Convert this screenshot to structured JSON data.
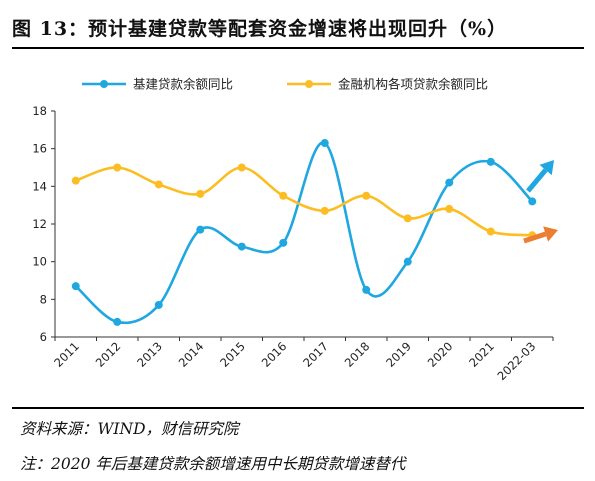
{
  "title": "图 13：预计基建贷款等配套资金增速将出现回升（%）",
  "source_note": "资料来源：WIND，财信研究院",
  "footnote": "注：2020 年后基建贷款余额增速用中长期贷款增速替代",
  "chart_data": {
    "type": "line",
    "categories": [
      "2011",
      "2012",
      "2013",
      "2014",
      "2015",
      "2016",
      "2017",
      "2018",
      "2019",
      "2020",
      "2021",
      "2022-03"
    ],
    "series": [
      {
        "name": "基建贷款余额同比",
        "color": "#1ea7e0",
        "values": [
          8.7,
          6.8,
          7.7,
          11.7,
          10.8,
          11.0,
          16.3,
          8.5,
          10.0,
          14.2,
          15.3,
          13.2
        ]
      },
      {
        "name": "金融机构各项贷款余额同比",
        "color": "#fbbd22",
        "values": [
          14.3,
          15.0,
          14.1,
          13.6,
          15.0,
          13.5,
          12.7,
          13.5,
          12.3,
          12.8,
          11.6,
          11.4
        ]
      }
    ],
    "ylim": [
      6,
      18
    ],
    "yticks": [
      6,
      8,
      10,
      12,
      14,
      16,
      18
    ],
    "legend_position": "top",
    "annotations": [
      {
        "type": "arrow",
        "color": "#1ea7e0",
        "meaning": "up"
      },
      {
        "type": "arrow",
        "color": "#ed7d31",
        "meaning": "up"
      }
    ],
    "grid": false
  }
}
